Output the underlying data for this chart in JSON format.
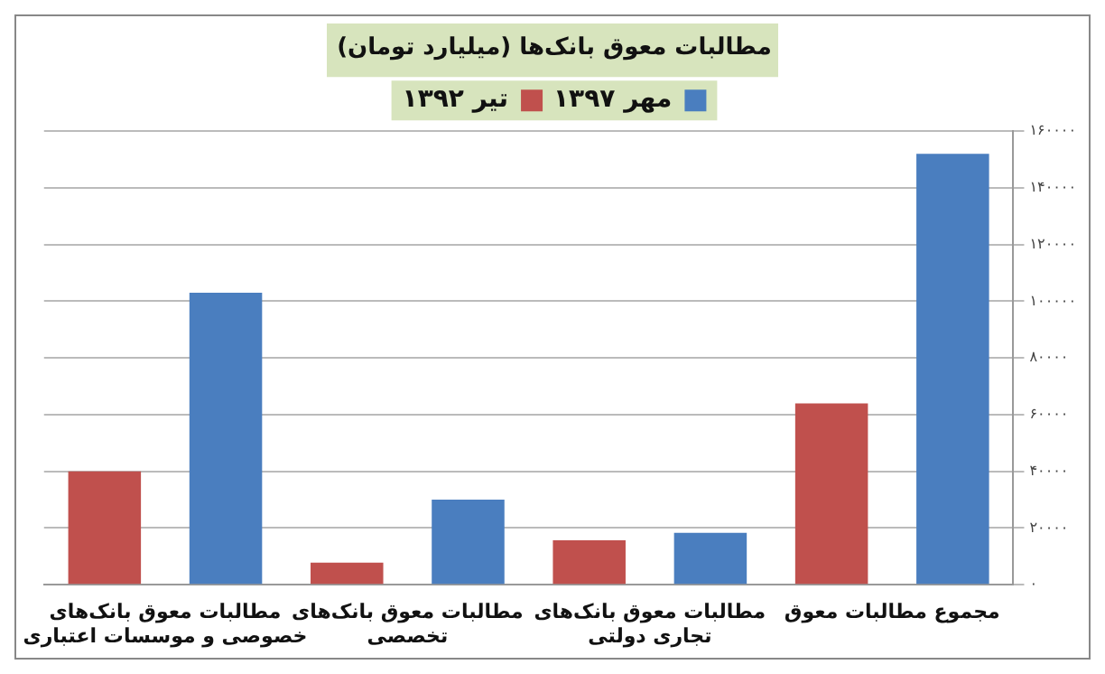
{
  "chart_data": {
    "type": "bar",
    "title": "مطالبات معوق بانک‌ها (میلیارد تومان)",
    "categories": [
      "مطالبات معوق بانک‌های خصوصی و موسسات اعتباری",
      "مطالبات معوق بانک‌های تخصصی",
      "مطالبات معوق بانک‌های تجاری دولتی",
      "مجموع مطالبات معوق"
    ],
    "series": [
      {
        "name": "تیر ۱۳۹۲",
        "color": "#c0504d",
        "values": [
          40000,
          7800,
          15700,
          64000
        ]
      },
      {
        "name": "مهر ۱۳۹۷",
        "color": "#4a7ebf",
        "values": [
          103000,
          30000,
          18300,
          152000
        ]
      }
    ],
    "ylim": [
      0,
      160000
    ],
    "yticks": [
      {
        "value": 0,
        "label": "۰"
      },
      {
        "value": 20000,
        "label": "۲۰۰۰۰"
      },
      {
        "value": 40000,
        "label": "۴۰۰۰۰"
      },
      {
        "value": 60000,
        "label": "۶۰۰۰۰"
      },
      {
        "value": 80000,
        "label": "۸۰۰۰۰"
      },
      {
        "value": 100000,
        "label": "۱۰۰۰۰۰"
      },
      {
        "value": 120000,
        "label": "۱۲۰۰۰۰"
      },
      {
        "value": 140000,
        "label": "۱۴۰۰۰۰"
      },
      {
        "value": 160000,
        "label": "۱۶۰۰۰۰"
      }
    ],
    "grid": "y",
    "legend": "top"
  }
}
